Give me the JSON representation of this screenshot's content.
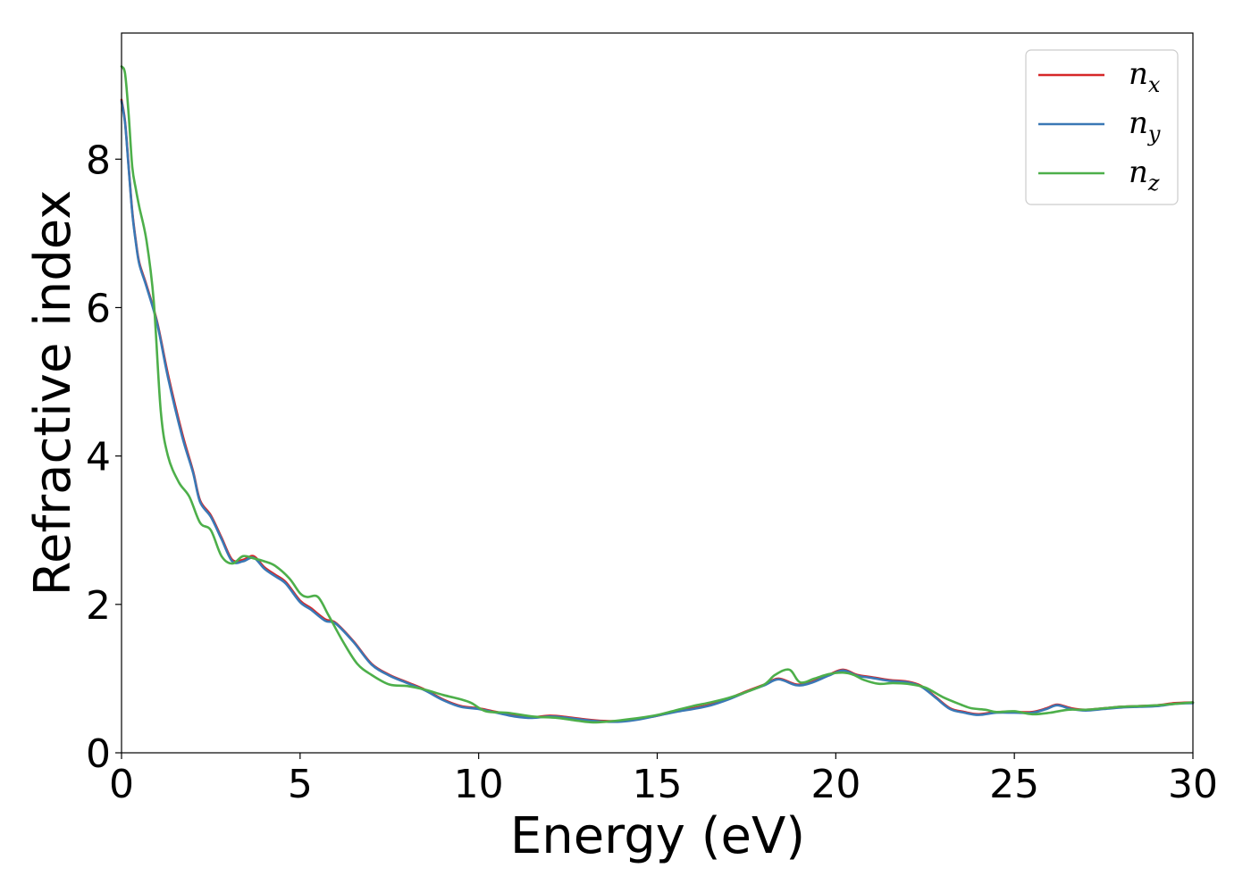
{
  "chart_data": {
    "type": "line",
    "title": "",
    "xlabel": "Energy (eV)",
    "ylabel": "Refractive index",
    "xlim": [
      0,
      30
    ],
    "ylim": [
      0,
      9.7
    ],
    "xticks": [
      "0",
      "5",
      "10",
      "15",
      "20",
      "25",
      "30"
    ],
    "xtick_values": [
      0,
      5,
      10,
      15,
      20,
      25,
      30
    ],
    "yticks": [
      "0",
      "2",
      "4",
      "6",
      "8"
    ],
    "ytick_values": [
      0,
      2,
      4,
      6,
      8
    ],
    "grid": false,
    "legend": "top-right",
    "series": [
      {
        "name": "n_x",
        "legend_base": "n",
        "legend_sub": "x",
        "color": "#d62728",
        "x": [
          0.0,
          0.1,
          0.2,
          0.3,
          0.4,
          0.5,
          0.7,
          1.0,
          1.3,
          1.7,
          2.0,
          2.2,
          2.5,
          2.8,
          3.1,
          3.4,
          3.7,
          4.0,
          4.3,
          4.6,
          5.0,
          5.3,
          5.7,
          6.0,
          6.5,
          7.0,
          7.5,
          8.0,
          8.5,
          9.0,
          9.5,
          10.0,
          10.5,
          11.0,
          11.5,
          12.0,
          12.5,
          13.0,
          13.5,
          14.0,
          14.5,
          15.0,
          15.5,
          16.0,
          16.5,
          17.0,
          17.5,
          18.0,
          18.4,
          18.9,
          19.3,
          19.8,
          20.2,
          20.6,
          21.0,
          21.5,
          22.0,
          22.4,
          22.8,
          23.2,
          23.6,
          24.0,
          24.5,
          25.0,
          25.5,
          25.9,
          26.2,
          26.6,
          27.0,
          27.5,
          28.0,
          28.5,
          29.0,
          29.5,
          30.0
        ],
        "y": [
          8.8,
          8.5,
          7.9,
          7.3,
          6.9,
          6.6,
          6.3,
          5.8,
          5.1,
          4.3,
          3.8,
          3.4,
          3.2,
          2.9,
          2.6,
          2.6,
          2.65,
          2.5,
          2.4,
          2.3,
          2.05,
          1.95,
          1.8,
          1.75,
          1.5,
          1.2,
          1.05,
          0.95,
          0.85,
          0.72,
          0.63,
          0.6,
          0.55,
          0.5,
          0.48,
          0.5,
          0.48,
          0.45,
          0.43,
          0.43,
          0.46,
          0.5,
          0.56,
          0.6,
          0.65,
          0.73,
          0.83,
          0.92,
          1.0,
          0.92,
          0.95,
          1.05,
          1.12,
          1.05,
          1.02,
          0.98,
          0.96,
          0.9,
          0.75,
          0.6,
          0.55,
          0.52,
          0.55,
          0.55,
          0.55,
          0.6,
          0.65,
          0.6,
          0.58,
          0.6,
          0.62,
          0.63,
          0.64,
          0.67,
          0.68
        ]
      },
      {
        "name": "n_y",
        "legend_base": "n",
        "legend_sub": "y",
        "color": "#3a78b5",
        "x": [
          0.0,
          0.1,
          0.2,
          0.3,
          0.4,
          0.5,
          0.7,
          1.0,
          1.3,
          1.7,
          2.0,
          2.2,
          2.5,
          2.8,
          3.1,
          3.4,
          3.7,
          4.0,
          4.3,
          4.6,
          5.0,
          5.3,
          5.7,
          6.0,
          6.5,
          7.0,
          7.5,
          8.0,
          8.5,
          9.0,
          9.5,
          10.0,
          10.5,
          11.0,
          11.5,
          12.0,
          12.5,
          13.0,
          13.5,
          14.0,
          14.5,
          15.0,
          15.5,
          16.0,
          16.5,
          17.0,
          17.5,
          18.0,
          18.4,
          18.9,
          19.3,
          19.8,
          20.2,
          20.6,
          21.0,
          21.5,
          22.0,
          22.4,
          22.8,
          23.2,
          23.6,
          24.0,
          24.5,
          25.0,
          25.5,
          25.9,
          26.2,
          26.6,
          27.0,
          27.5,
          28.0,
          28.5,
          29.0,
          29.5,
          30.0
        ],
        "y": [
          8.78,
          8.48,
          7.88,
          7.28,
          6.88,
          6.58,
          6.28,
          5.78,
          5.06,
          4.26,
          3.78,
          3.38,
          3.18,
          2.88,
          2.58,
          2.58,
          2.63,
          2.48,
          2.38,
          2.28,
          2.03,
          1.93,
          1.78,
          1.74,
          1.49,
          1.19,
          1.04,
          0.94,
          0.84,
          0.71,
          0.62,
          0.59,
          0.54,
          0.49,
          0.47,
          0.49,
          0.47,
          0.44,
          0.42,
          0.42,
          0.45,
          0.5,
          0.55,
          0.59,
          0.64,
          0.72,
          0.82,
          0.91,
          0.99,
          0.91,
          0.94,
          1.04,
          1.11,
          1.04,
          1.01,
          0.97,
          0.95,
          0.89,
          0.74,
          0.59,
          0.54,
          0.51,
          0.54,
          0.54,
          0.54,
          0.59,
          0.64,
          0.59,
          0.57,
          0.59,
          0.61,
          0.62,
          0.63,
          0.66,
          0.67
        ]
      },
      {
        "name": "n_z",
        "legend_base": "n",
        "legend_sub": "z",
        "color": "#4daf4a",
        "x": [
          0.0,
          0.1,
          0.2,
          0.3,
          0.4,
          0.5,
          0.7,
          0.9,
          1.1,
          1.3,
          1.6,
          1.9,
          2.2,
          2.5,
          2.8,
          3.1,
          3.4,
          3.7,
          4.0,
          4.3,
          4.7,
          5.0,
          5.2,
          5.5,
          5.8,
          6.2,
          6.6,
          7.0,
          7.5,
          8.0,
          8.5,
          9.0,
          9.5,
          9.8,
          10.2,
          10.8,
          11.5,
          12.2,
          12.8,
          13.2,
          13.6,
          14.0,
          14.5,
          15.0,
          15.5,
          16.0,
          16.5,
          17.0,
          17.5,
          18.0,
          18.3,
          18.7,
          19.0,
          19.4,
          19.8,
          20.2,
          20.5,
          20.8,
          21.2,
          21.6,
          22.0,
          22.5,
          23.0,
          23.5,
          23.8,
          24.2,
          24.5,
          25.0,
          25.5,
          26.0,
          26.5,
          27.0,
          27.5,
          28.0,
          28.5,
          29.0,
          29.5,
          30.0
        ],
        "y": [
          9.25,
          9.15,
          8.6,
          7.9,
          7.6,
          7.35,
          6.9,
          6.1,
          4.6,
          4.0,
          3.65,
          3.45,
          3.1,
          3.0,
          2.65,
          2.55,
          2.65,
          2.62,
          2.58,
          2.52,
          2.35,
          2.15,
          2.1,
          2.1,
          1.85,
          1.5,
          1.2,
          1.05,
          0.92,
          0.9,
          0.85,
          0.78,
          0.72,
          0.67,
          0.56,
          0.54,
          0.49,
          0.47,
          0.43,
          0.41,
          0.42,
          0.44,
          0.47,
          0.51,
          0.57,
          0.63,
          0.68,
          0.74,
          0.82,
          0.92,
          1.05,
          1.12,
          0.95,
          1.0,
          1.06,
          1.08,
          1.05,
          0.98,
          0.93,
          0.94,
          0.93,
          0.88,
          0.75,
          0.65,
          0.6,
          0.58,
          0.55,
          0.56,
          0.52,
          0.54,
          0.58,
          0.58,
          0.6,
          0.62,
          0.63,
          0.64,
          0.66,
          0.68
        ]
      }
    ]
  }
}
